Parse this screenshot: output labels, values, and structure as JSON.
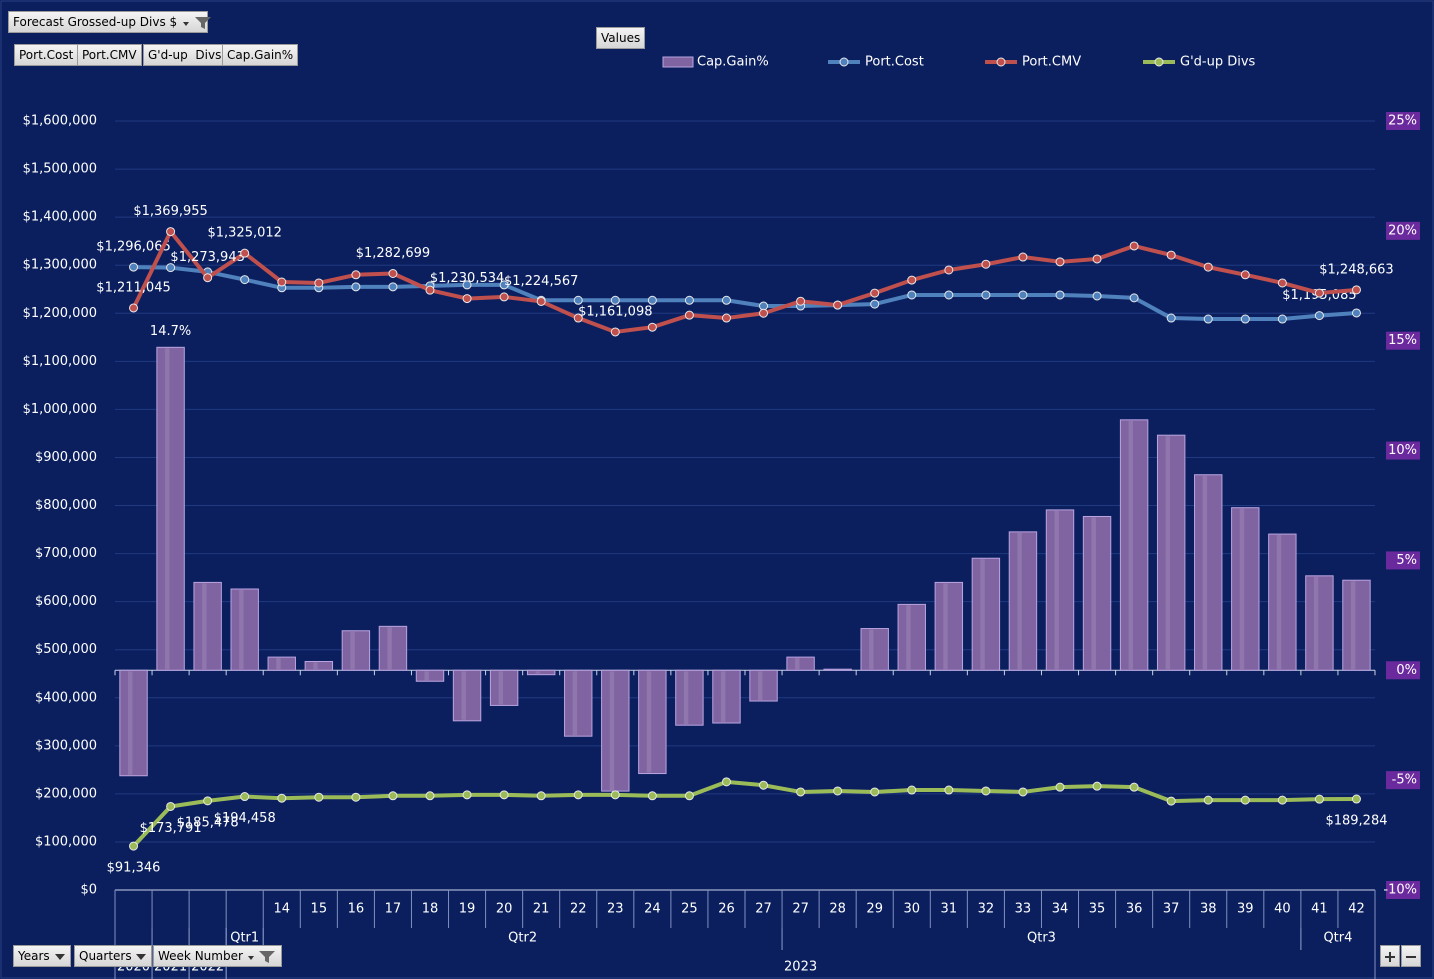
{
  "ui": {
    "report_filter": "Forecast Grossed-up Divs $",
    "values_button": "Values",
    "value_fields": [
      "Port.Cost",
      "Port.CMV",
      "G'd-up  Divs",
      "Cap.Gain%"
    ],
    "axis_fields": [
      "Years",
      "Quarters",
      "Week Number"
    ]
  },
  "chart_data": {
    "type": "combo",
    "categories": [
      null,
      null,
      null,
      null,
      "14",
      "15",
      "16",
      "17",
      "18",
      "19",
      "20",
      "21",
      "22",
      "23",
      "24",
      "25",
      "26",
      "27",
      "27",
      "28",
      "29",
      "30",
      "31",
      "32",
      "33",
      "34",
      "35",
      "36",
      "37",
      "38",
      "39",
      "40",
      "41",
      "42"
    ],
    "quarters": [
      {
        "label": "Qtr1",
        "first": 3,
        "last": 3
      },
      {
        "label": "Qtr2",
        "first": 4,
        "last": 17
      },
      {
        "label": "Qtr3",
        "first": 18,
        "last": 31
      },
      {
        "label": "Qtr4",
        "first": 32,
        "last": 33
      }
    ],
    "years": [
      {
        "label": "2020",
        "first": 0,
        "last": 0
      },
      {
        "label": "2021",
        "first": 1,
        "last": 1
      },
      {
        "label": "2022",
        "first": 2,
        "last": 2
      },
      {
        "label": "2023",
        "first": 3,
        "last": 33
      }
    ],
    "ylim": [
      0,
      1600000
    ],
    "yticks": [
      {
        "value": 0,
        "label": "$0"
      },
      {
        "value": 100000,
        "label": "$100,000"
      },
      {
        "value": 200000,
        "label": "$200,000"
      },
      {
        "value": 300000,
        "label": "$300,000"
      },
      {
        "value": 400000,
        "label": "$400,000"
      },
      {
        "value": 500000,
        "label": "$500,000"
      },
      {
        "value": 600000,
        "label": "$600,000"
      },
      {
        "value": 700000,
        "label": "$700,000"
      },
      {
        "value": 800000,
        "label": "$800,000"
      },
      {
        "value": 900000,
        "label": "$900,000"
      },
      {
        "value": 1000000,
        "label": "$1,000,000"
      },
      {
        "value": 1100000,
        "label": "$1,100,000"
      },
      {
        "value": 1200000,
        "label": "$1,200,000"
      },
      {
        "value": 1300000,
        "label": "$1,300,000"
      },
      {
        "value": 1400000,
        "label": "$1,400,000"
      },
      {
        "value": 1500000,
        "label": "$1,500,000"
      },
      {
        "value": 1600000,
        "label": "$1,600,000"
      }
    ],
    "y2lim": [
      -10,
      25
    ],
    "y2ticks": [
      {
        "value": -10,
        "label": "-10%"
      },
      {
        "value": -5,
        "label": "-5%"
      },
      {
        "value": 0,
        "label": "0%"
      },
      {
        "value": 5,
        "label": "5%"
      },
      {
        "value": 10,
        "label": "10%"
      },
      {
        "value": 15,
        "label": "15%"
      },
      {
        "value": 20,
        "label": "20%"
      },
      {
        "value": 25,
        "label": "25%"
      }
    ],
    "grid": true,
    "series": [
      {
        "name": "Cap.Gain%",
        "type": "bar",
        "axis": "y2",
        "color": "#8064a2",
        "values": [
          -4.8,
          14.7,
          4.0,
          3.7,
          0.6,
          0.4,
          1.8,
          2.0,
          -0.5,
          -2.3,
          -1.6,
          -0.2,
          -3.0,
          -5.5,
          -4.7,
          -2.5,
          -2.4,
          -1.4,
          0.6,
          0.05,
          1.9,
          3.0,
          4.0,
          5.1,
          6.3,
          7.3,
          7.0,
          11.4,
          10.7,
          8.9,
          7.4,
          6.2,
          4.3,
          4.1
        ],
        "value_labels": [
          null,
          "14.7%",
          null,
          null,
          null,
          null,
          null,
          null,
          null,
          null,
          null,
          null,
          null,
          null,
          null,
          null,
          null,
          null,
          null,
          null,
          null,
          null,
          null,
          null,
          null,
          null,
          null,
          null,
          null,
          null,
          null,
          null,
          null,
          null
        ]
      },
      {
        "name": "Port.Cost",
        "type": "line",
        "color": "#4f81bd",
        "values": [
          1296065,
          1295000,
          1286000,
          1270000,
          1253000,
          1253000,
          1255000,
          1255000,
          1257000,
          1259000,
          1259000,
          1227000,
          1227000,
          1227000,
          1227000,
          1227000,
          1227000,
          1215000,
          1215000,
          1217000,
          1219000,
          1238000,
          1238000,
          1238000,
          1238000,
          1238000,
          1236000,
          1232000,
          1190000,
          1188000,
          1188000,
          1188000,
          1195085,
          1200600
        ],
        "value_labels": [
          "$1,296,065",
          null,
          null,
          null,
          null,
          null,
          null,
          null,
          null,
          null,
          null,
          null,
          null,
          null,
          null,
          null,
          null,
          null,
          null,
          null,
          null,
          null,
          null,
          null,
          null,
          null,
          null,
          null,
          null,
          null,
          null,
          null,
          "$1,195,085",
          null
        ]
      },
      {
        "name": "Port.CMV",
        "type": "line",
        "color": "#c0504d",
        "values": [
          1211045,
          1369955,
          1273943,
          1325012,
          1265000,
          1263000,
          1280000,
          1282699,
          1248000,
          1230534,
          1234000,
          1224567,
          1190000,
          1161098,
          1171000,
          1196000,
          1190000,
          1200000,
          1225000,
          1217000,
          1242000,
          1269000,
          1290000,
          1302000,
          1317000,
          1307000,
          1313000,
          1340000,
          1321000,
          1296000,
          1280000,
          1263000,
          1242000,
          1248663
        ],
        "value_labels": [
          "$1,211,045",
          "$1,369,955",
          "$1,273,943",
          "$1,325,012",
          null,
          null,
          null,
          "$1,282,699",
          null,
          "$1,230,534",
          null,
          "$1,224,567",
          null,
          "$1,161,098",
          null,
          null,
          null,
          null,
          null,
          null,
          null,
          null,
          null,
          null,
          null,
          null,
          null,
          null,
          null,
          null,
          null,
          null,
          null,
          "$1,248,663"
        ]
      },
      {
        "name": "G'd-up Divs",
        "type": "line",
        "color": "#9bbb59",
        "values": [
          91346,
          173791,
          185478,
          194458,
          191000,
          193000,
          193000,
          196000,
          196000,
          198000,
          198000,
          196000,
          198000,
          198000,
          196000,
          196000,
          225000,
          218000,
          204000,
          206000,
          204000,
          208000,
          208000,
          206000,
          204000,
          214000,
          216000,
          214000,
          185000,
          187000,
          187000,
          187000,
          189000,
          189284
        ],
        "value_labels": [
          "$91,346",
          "$173,791",
          "$185,478",
          "$194,458",
          null,
          null,
          null,
          null,
          null,
          null,
          null,
          null,
          null,
          null,
          null,
          null,
          null,
          null,
          null,
          null,
          null,
          null,
          null,
          null,
          null,
          null,
          null,
          null,
          null,
          null,
          null,
          null,
          null,
          "$189,284"
        ]
      }
    ]
  }
}
